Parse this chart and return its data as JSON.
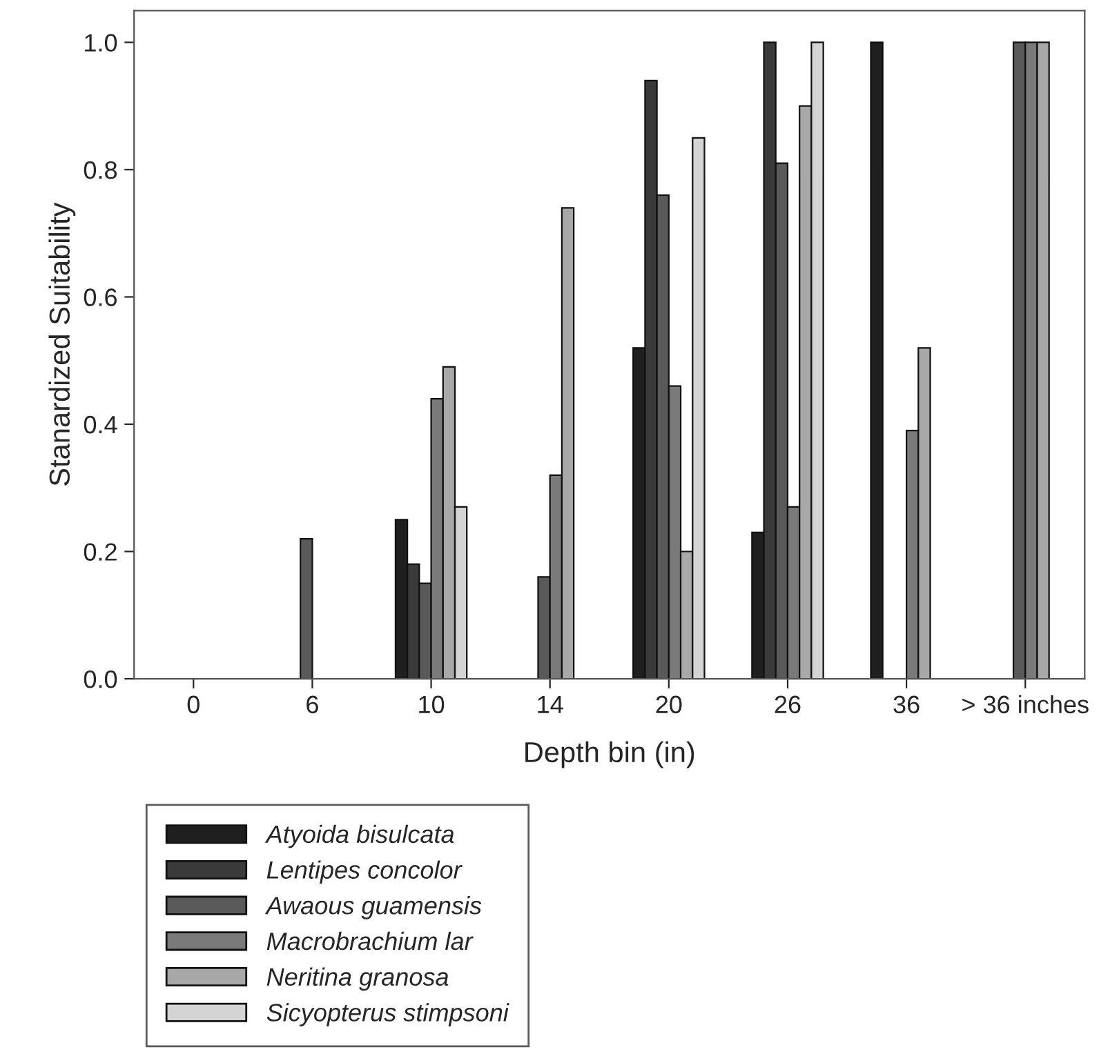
{
  "chart_data": {
    "type": "bar",
    "xlabel": "Depth bin (in)",
    "ylabel": "Stanardized Suitability",
    "categories": [
      "0",
      "6",
      "10",
      "14",
      "20",
      "26",
      "36",
      "> 36 inches"
    ],
    "series": [
      {
        "name": "Atyoida bisulcata",
        "color": "#1f1f1f",
        "values": [
          null,
          null,
          0.25,
          null,
          0.52,
          0.23,
          1.0,
          null
        ]
      },
      {
        "name": "Lentipes concolor",
        "color": "#3a3a3a",
        "values": [
          null,
          null,
          0.18,
          null,
          0.94,
          1.0,
          null,
          null
        ]
      },
      {
        "name": "Awaous guamensis",
        "color": "#5a5a5a",
        "values": [
          null,
          0.22,
          0.15,
          0.16,
          0.76,
          0.81,
          null,
          1.0
        ]
      },
      {
        "name": "Macrobrachium lar",
        "color": "#7a7a7a",
        "values": [
          null,
          null,
          0.44,
          0.32,
          0.46,
          0.27,
          0.39,
          1.0
        ]
      },
      {
        "name": "Neritina granosa",
        "color": "#a8a8a8",
        "values": [
          null,
          null,
          0.49,
          0.74,
          0.2,
          0.9,
          0.52,
          1.0
        ]
      },
      {
        "name": "Sicyopterus stimpsoni",
        "color": "#d4d4d4",
        "values": [
          null,
          null,
          0.27,
          null,
          0.85,
          1.0,
          null,
          null
        ]
      }
    ],
    "ylim": [
      0,
      1.05
    ],
    "yticks": [
      {
        "value": 0,
        "label": "0.0"
      },
      {
        "value": 0.2,
        "label": "0.2"
      },
      {
        "value": 0.4,
        "label": "0.4"
      },
      {
        "value": 0.6,
        "label": "0.6"
      },
      {
        "value": 0.8,
        "label": "0.8"
      },
      {
        "value": 1.0,
        "label": "1.0"
      }
    ],
    "grid": false,
    "legend": "bottom left"
  }
}
